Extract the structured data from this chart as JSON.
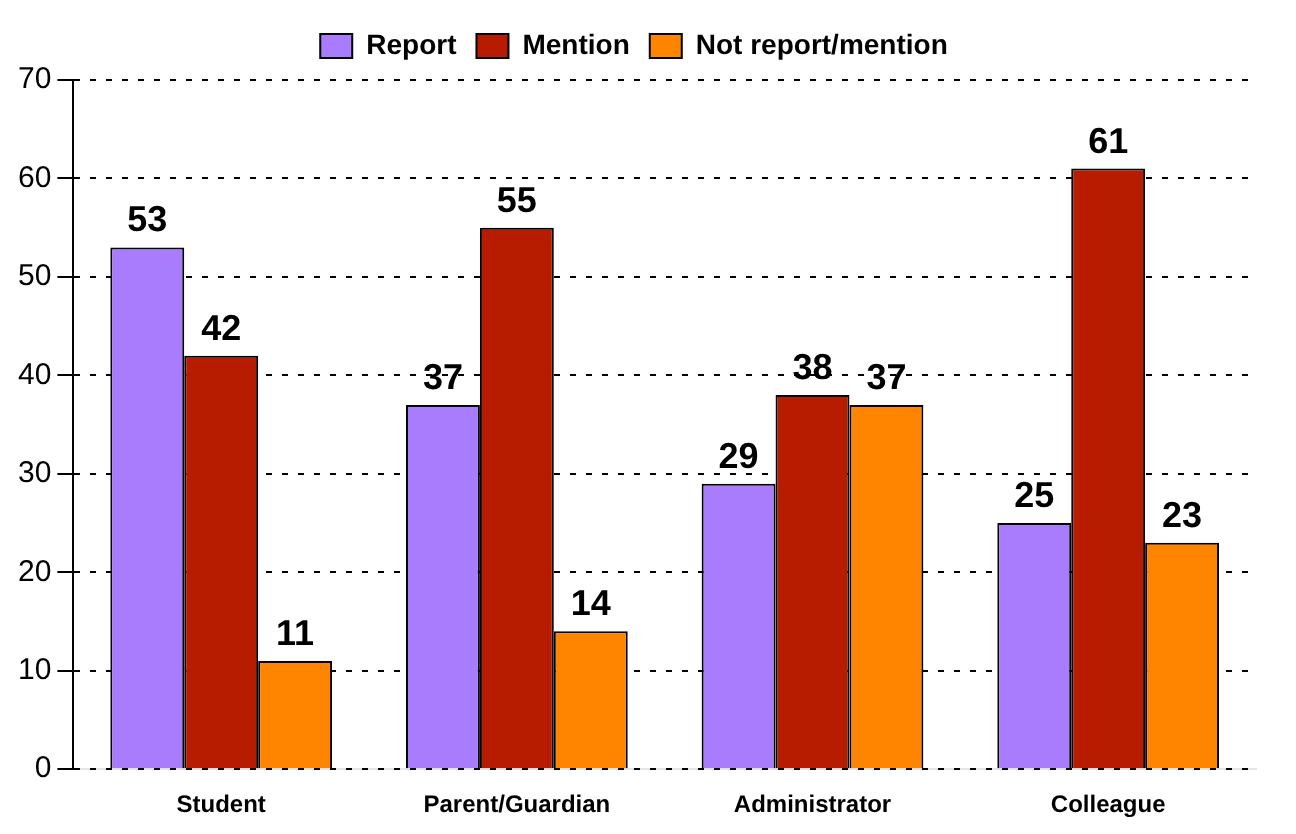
{
  "chart_data": {
    "type": "bar",
    "categories": [
      "Student",
      "Parent/Guardian",
      "Administrator",
      "Colleague"
    ],
    "series": [
      {
        "name": "Report",
        "color": "#a87cfc",
        "values": [
          53,
          37,
          29,
          25
        ]
      },
      {
        "name": "Mention",
        "color": "#b81c00",
        "values": [
          42,
          55,
          38,
          61
        ]
      },
      {
        "name": "Not report/mention",
        "color": "#ff8400",
        "values": [
          11,
          14,
          37,
          23
        ]
      }
    ],
    "ylim": [
      0,
      70
    ],
    "yticks": [
      0,
      10,
      20,
      30,
      40,
      50,
      60,
      70
    ],
    "grid": "y",
    "legend": "top",
    "data_labels": true
  }
}
